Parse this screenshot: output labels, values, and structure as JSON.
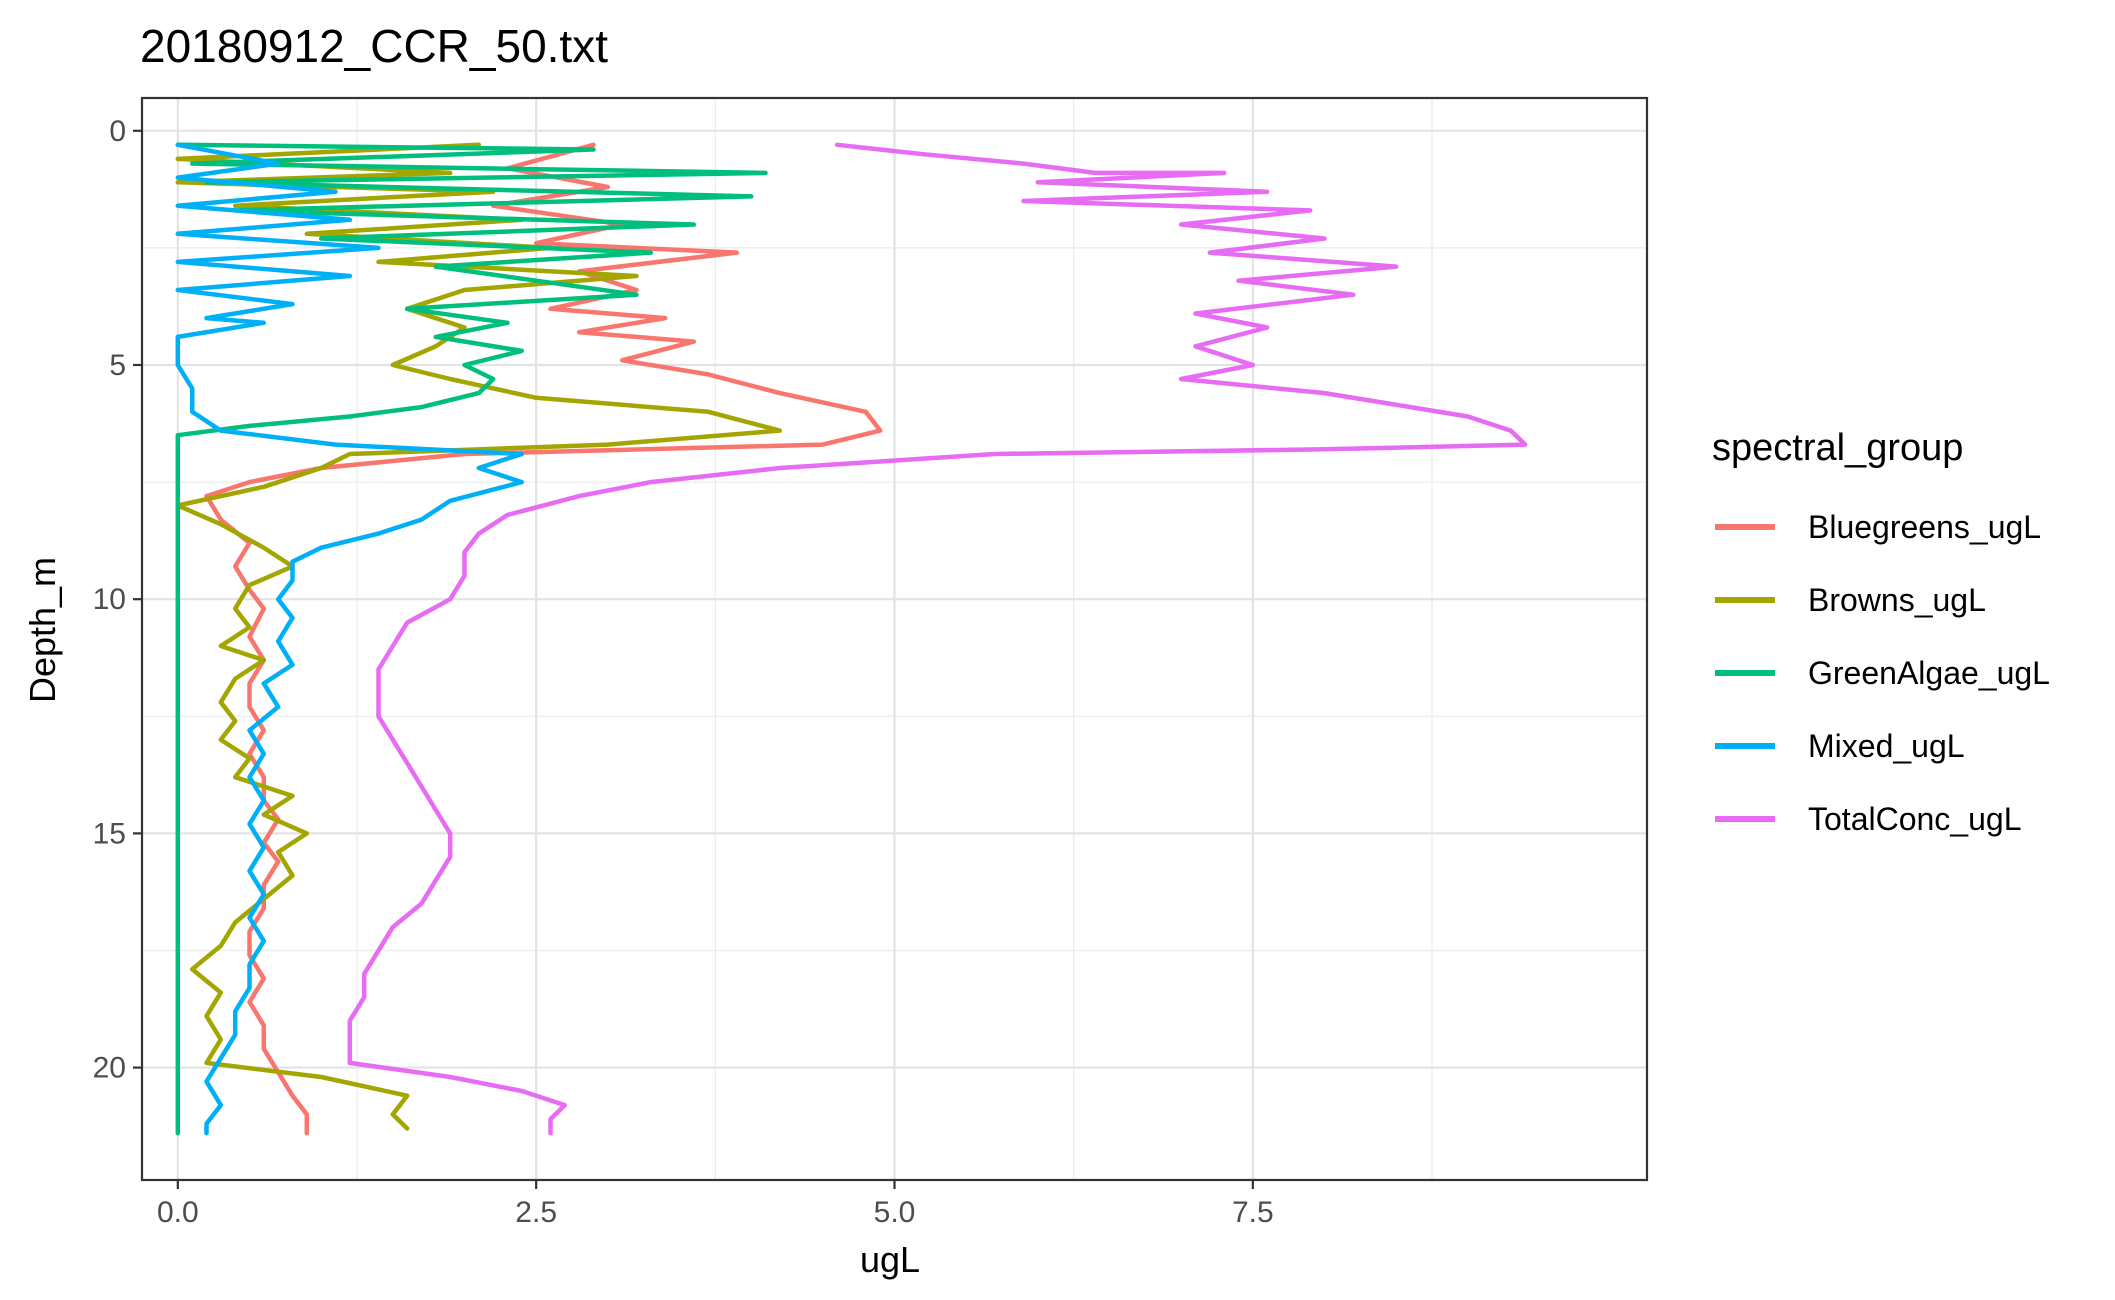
{
  "chart_data": {
    "type": "line",
    "title": "20180912_CCR_50.txt",
    "xlabel": "ugL",
    "ylabel": "Depth_m",
    "xlim": [
      -0.25,
      10.25
    ],
    "ylim": [
      22.4,
      -0.7
    ],
    "y_reversed": true,
    "x_ticks": [
      0.0,
      2.5,
      5.0,
      7.5
    ],
    "x_tick_labels": [
      "0.0",
      "2.5",
      "5.0",
      "7.5"
    ],
    "y_ticks": [
      0,
      5,
      10,
      15,
      20
    ],
    "y_tick_labels": [
      "0",
      "5",
      "10",
      "15",
      "20"
    ],
    "grid": true,
    "legend": {
      "title": "spectral_group",
      "placement": "right"
    },
    "series": [
      {
        "name": "Bluegreens_ugL",
        "color": "#F8766D",
        "points": [
          [
            2.9,
            0.3
          ],
          [
            2.3,
            0.8
          ],
          [
            3.0,
            1.2
          ],
          [
            2.2,
            1.6
          ],
          [
            3.1,
            2.0
          ],
          [
            2.5,
            2.4
          ],
          [
            3.9,
            2.6
          ],
          [
            2.8,
            3.0
          ],
          [
            3.2,
            3.4
          ],
          [
            2.6,
            3.8
          ],
          [
            3.4,
            4.0
          ],
          [
            2.8,
            4.3
          ],
          [
            3.6,
            4.5
          ],
          [
            3.1,
            4.9
          ],
          [
            3.7,
            5.2
          ],
          [
            4.2,
            5.6
          ],
          [
            4.8,
            6.0
          ],
          [
            4.9,
            6.4
          ],
          [
            4.5,
            6.7
          ],
          [
            2.0,
            6.9
          ],
          [
            1.0,
            7.2
          ],
          [
            0.5,
            7.5
          ],
          [
            0.2,
            7.8
          ],
          [
            0.3,
            8.3
          ],
          [
            0.5,
            8.8
          ],
          [
            0.4,
            9.3
          ],
          [
            0.5,
            9.8
          ],
          [
            0.6,
            10.2
          ],
          [
            0.5,
            10.8
          ],
          [
            0.6,
            11.3
          ],
          [
            0.5,
            11.8
          ],
          [
            0.5,
            12.3
          ],
          [
            0.6,
            12.8
          ],
          [
            0.5,
            13.3
          ],
          [
            0.6,
            13.8
          ],
          [
            0.6,
            14.3
          ],
          [
            0.7,
            14.7
          ],
          [
            0.6,
            15.2
          ],
          [
            0.7,
            15.6
          ],
          [
            0.6,
            16.1
          ],
          [
            0.6,
            16.6
          ],
          [
            0.5,
            17.1
          ],
          [
            0.5,
            17.6
          ],
          [
            0.6,
            18.1
          ],
          [
            0.5,
            18.6
          ],
          [
            0.6,
            19.1
          ],
          [
            0.6,
            19.6
          ],
          [
            0.7,
            20.1
          ],
          [
            0.8,
            20.6
          ],
          [
            0.9,
            21.0
          ],
          [
            0.9,
            21.4
          ]
        ]
      },
      {
        "name": "Browns_ugL",
        "color": "#A3A500",
        "points": [
          [
            2.1,
            0.3
          ],
          [
            0.0,
            0.6
          ],
          [
            1.9,
            0.9
          ],
          [
            0.0,
            1.1
          ],
          [
            2.2,
            1.3
          ],
          [
            0.4,
            1.6
          ],
          [
            2.4,
            1.9
          ],
          [
            0.9,
            2.2
          ],
          [
            2.6,
            2.5
          ],
          [
            1.4,
            2.8
          ],
          [
            3.2,
            3.1
          ],
          [
            2.0,
            3.4
          ],
          [
            1.6,
            3.8
          ],
          [
            2.0,
            4.2
          ],
          [
            1.8,
            4.6
          ],
          [
            1.5,
            5.0
          ],
          [
            1.9,
            5.3
          ],
          [
            2.5,
            5.7
          ],
          [
            3.7,
            6.0
          ],
          [
            4.2,
            6.4
          ],
          [
            3.0,
            6.7
          ],
          [
            1.2,
            6.9
          ],
          [
            1.0,
            7.2
          ],
          [
            0.6,
            7.6
          ],
          [
            0.0,
            8.0
          ],
          [
            0.3,
            8.4
          ],
          [
            0.6,
            8.9
          ],
          [
            0.8,
            9.3
          ],
          [
            0.5,
            9.7
          ],
          [
            0.4,
            10.2
          ],
          [
            0.5,
            10.6
          ],
          [
            0.3,
            11.0
          ],
          [
            0.6,
            11.3
          ],
          [
            0.4,
            11.7
          ],
          [
            0.3,
            12.2
          ],
          [
            0.4,
            12.6
          ],
          [
            0.3,
            13.0
          ],
          [
            0.5,
            13.4
          ],
          [
            0.4,
            13.8
          ],
          [
            0.8,
            14.2
          ],
          [
            0.6,
            14.6
          ],
          [
            0.9,
            15.0
          ],
          [
            0.7,
            15.4
          ],
          [
            0.8,
            15.9
          ],
          [
            0.6,
            16.4
          ],
          [
            0.4,
            16.9
          ],
          [
            0.3,
            17.4
          ],
          [
            0.1,
            17.9
          ],
          [
            0.3,
            18.4
          ],
          [
            0.2,
            18.9
          ],
          [
            0.3,
            19.4
          ],
          [
            0.2,
            19.9
          ],
          [
            1.0,
            20.2
          ],
          [
            1.6,
            20.6
          ],
          [
            1.5,
            21.0
          ],
          [
            1.6,
            21.3
          ]
        ]
      },
      {
        "name": "GreenAlgae_ugL",
        "color": "#00BF7D",
        "points": [
          [
            0.0,
            0.3
          ],
          [
            2.9,
            0.4
          ],
          [
            0.1,
            0.7
          ],
          [
            4.1,
            0.9
          ],
          [
            0.2,
            1.1
          ],
          [
            4.0,
            1.4
          ],
          [
            0.4,
            1.7
          ],
          [
            3.6,
            2.0
          ],
          [
            1.0,
            2.3
          ],
          [
            3.3,
            2.6
          ],
          [
            1.8,
            2.9
          ],
          [
            2.5,
            3.2
          ],
          [
            3.2,
            3.5
          ],
          [
            1.6,
            3.8
          ],
          [
            2.3,
            4.1
          ],
          [
            1.8,
            4.4
          ],
          [
            2.4,
            4.7
          ],
          [
            2.0,
            5.0
          ],
          [
            2.2,
            5.3
          ],
          [
            2.1,
            5.6
          ],
          [
            1.7,
            5.9
          ],
          [
            1.2,
            6.1
          ],
          [
            0.5,
            6.3
          ],
          [
            0.0,
            6.5
          ],
          [
            0.0,
            8.0
          ],
          [
            0.0,
            10.0
          ],
          [
            0.0,
            12.0
          ],
          [
            0.0,
            14.0
          ],
          [
            0.0,
            16.0
          ],
          [
            0.0,
            18.0
          ],
          [
            0.0,
            20.0
          ],
          [
            0.0,
            21.4
          ]
        ]
      },
      {
        "name": "Mixed_ugL",
        "color": "#00B0F6",
        "points": [
          [
            0.0,
            0.3
          ],
          [
            0.7,
            0.7
          ],
          [
            0.0,
            1.0
          ],
          [
            1.1,
            1.3
          ],
          [
            0.0,
            1.6
          ],
          [
            1.2,
            1.9
          ],
          [
            0.0,
            2.2
          ],
          [
            1.4,
            2.5
          ],
          [
            0.0,
            2.8
          ],
          [
            1.2,
            3.1
          ],
          [
            0.0,
            3.4
          ],
          [
            0.8,
            3.7
          ],
          [
            0.2,
            4.0
          ],
          [
            0.6,
            4.1
          ],
          [
            0.0,
            4.4
          ],
          [
            0.0,
            5.0
          ],
          [
            0.1,
            5.5
          ],
          [
            0.1,
            6.0
          ],
          [
            0.3,
            6.4
          ],
          [
            1.1,
            6.7
          ],
          [
            2.4,
            6.9
          ],
          [
            2.1,
            7.2
          ],
          [
            2.4,
            7.5
          ],
          [
            1.9,
            7.9
          ],
          [
            1.7,
            8.3
          ],
          [
            1.4,
            8.6
          ],
          [
            1.0,
            8.9
          ],
          [
            0.8,
            9.2
          ],
          [
            0.8,
            9.6
          ],
          [
            0.7,
            10.0
          ],
          [
            0.8,
            10.4
          ],
          [
            0.7,
            10.9
          ],
          [
            0.8,
            11.4
          ],
          [
            0.6,
            11.8
          ],
          [
            0.7,
            12.3
          ],
          [
            0.5,
            12.8
          ],
          [
            0.6,
            13.3
          ],
          [
            0.5,
            13.8
          ],
          [
            0.6,
            14.3
          ],
          [
            0.5,
            14.8
          ],
          [
            0.6,
            15.3
          ],
          [
            0.5,
            15.8
          ],
          [
            0.6,
            16.3
          ],
          [
            0.5,
            16.8
          ],
          [
            0.6,
            17.3
          ],
          [
            0.5,
            17.8
          ],
          [
            0.5,
            18.3
          ],
          [
            0.4,
            18.8
          ],
          [
            0.4,
            19.3
          ],
          [
            0.3,
            19.8
          ],
          [
            0.2,
            20.3
          ],
          [
            0.3,
            20.8
          ],
          [
            0.2,
            21.2
          ],
          [
            0.2,
            21.4
          ]
        ]
      },
      {
        "name": "TotalConc_ugL",
        "color": "#E76BF3",
        "points": [
          [
            4.6,
            0.3
          ],
          [
            5.2,
            0.5
          ],
          [
            5.9,
            0.7
          ],
          [
            6.4,
            0.9
          ],
          [
            7.3,
            0.9
          ],
          [
            6.0,
            1.1
          ],
          [
            7.6,
            1.3
          ],
          [
            5.9,
            1.5
          ],
          [
            7.9,
            1.7
          ],
          [
            7.0,
            2.0
          ],
          [
            8.0,
            2.3
          ],
          [
            7.2,
            2.6
          ],
          [
            8.5,
            2.9
          ],
          [
            7.4,
            3.2
          ],
          [
            8.2,
            3.5
          ],
          [
            7.1,
            3.9
          ],
          [
            7.6,
            4.2
          ],
          [
            7.1,
            4.6
          ],
          [
            7.5,
            5.0
          ],
          [
            7.0,
            5.3
          ],
          [
            8.0,
            5.6
          ],
          [
            8.6,
            5.9
          ],
          [
            9.0,
            6.1
          ],
          [
            9.3,
            6.4
          ],
          [
            9.4,
            6.7
          ],
          [
            8.0,
            6.8
          ],
          [
            5.7,
            6.9
          ],
          [
            4.2,
            7.2
          ],
          [
            3.3,
            7.5
          ],
          [
            2.8,
            7.8
          ],
          [
            2.3,
            8.2
          ],
          [
            2.1,
            8.6
          ],
          [
            2.0,
            9.0
          ],
          [
            2.0,
            9.5
          ],
          [
            1.9,
            10.0
          ],
          [
            1.6,
            10.5
          ],
          [
            1.5,
            11.0
          ],
          [
            1.4,
            11.5
          ],
          [
            1.4,
            12.0
          ],
          [
            1.4,
            12.5
          ],
          [
            1.5,
            13.0
          ],
          [
            1.6,
            13.5
          ],
          [
            1.7,
            14.0
          ],
          [
            1.8,
            14.5
          ],
          [
            1.9,
            15.0
          ],
          [
            1.9,
            15.5
          ],
          [
            1.8,
            16.0
          ],
          [
            1.7,
            16.5
          ],
          [
            1.5,
            17.0
          ],
          [
            1.4,
            17.5
          ],
          [
            1.3,
            18.0
          ],
          [
            1.3,
            18.5
          ],
          [
            1.2,
            19.0
          ],
          [
            1.2,
            19.5
          ],
          [
            1.2,
            19.9
          ],
          [
            1.9,
            20.2
          ],
          [
            2.4,
            20.5
          ],
          [
            2.7,
            20.8
          ],
          [
            2.6,
            21.1
          ],
          [
            2.6,
            21.4
          ]
        ]
      }
    ]
  }
}
